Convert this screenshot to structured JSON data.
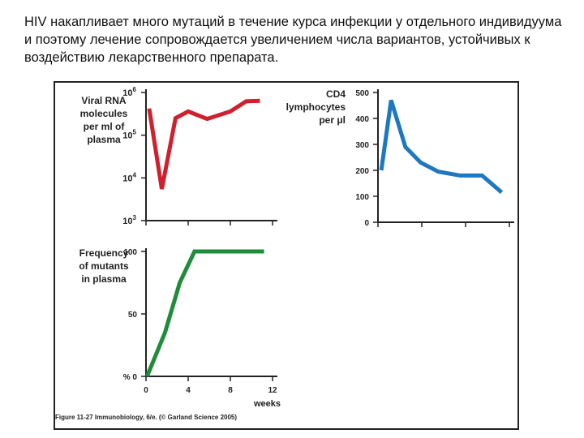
{
  "caption": "HIV накапливает много мутаций в течение курса инфекции у отдельного индивидуума и поэтому лечение сопровождается увеличением числа вариантов, устойчивых к воздействию лекарственного препарата.",
  "figure_credit": "Figure 11-27 Immunobiology, 6/e. (© Garland Science 2005)",
  "colors": {
    "red": "#d0202e",
    "blue": "#1e78c0",
    "green": "#1f8c3b",
    "axis": "#222222"
  },
  "chart_data": [
    {
      "type": "line",
      "ylabel": [
        "Viral RNA",
        "molecules",
        "per ml of",
        "plasma"
      ],
      "yscale": "log",
      "yticks": [
        {
          "value": 1000,
          "base": "10",
          "exp": "3"
        },
        {
          "value": 10000,
          "base": "10",
          "exp": "4"
        },
        {
          "value": 100000,
          "base": "10",
          "exp": "5"
        },
        {
          "value": 1000000,
          "base": "10",
          "exp": "6"
        }
      ],
      "xlim": [
        0,
        12
      ],
      "ylim": [
        1000,
        1000000
      ],
      "x": [
        0.3,
        1.5,
        2.8,
        4.0,
        5.8,
        8.0,
        9.5,
        10.8
      ],
      "y": [
        420000,
        5500,
        250000,
        360000,
        240000,
        360000,
        620000,
        640000
      ],
      "color": "#d0202e"
    },
    {
      "type": "line",
      "ylabel": [
        "CD4",
        "lymphocytes",
        "per μl"
      ],
      "yticks": [
        "0",
        "100",
        "200",
        "300",
        "400",
        "500"
      ],
      "ytick_values": [
        0,
        100,
        200,
        300,
        400,
        500
      ],
      "xlim": [
        0,
        12
      ],
      "ylim": [
        0,
        500
      ],
      "x": [
        0.3,
        1.2,
        2.5,
        3.9,
        5.5,
        7.5,
        9.5,
        11.3
      ],
      "y": [
        200,
        470,
        290,
        230,
        195,
        180,
        180,
        115
      ],
      "color": "#1e78c0"
    },
    {
      "type": "line",
      "ylabel": [
        "Frequency",
        "of mutants",
        "in  plasma"
      ],
      "yticks": [
        "%  0",
        "50",
        "100"
      ],
      "ytick_values": [
        0,
        50,
        100
      ],
      "xticks": [
        "0",
        "4",
        "8",
        "12"
      ],
      "xtick_values": [
        0,
        4,
        8,
        12
      ],
      "xlabel": "weeks",
      "xlim": [
        0,
        12
      ],
      "ylim": [
        0,
        100
      ],
      "x": [
        0.1,
        1.8,
        3.2,
        4.6,
        11.2
      ],
      "y": [
        0,
        35,
        75,
        100,
        100
      ],
      "color": "#1f8c3b"
    }
  ]
}
